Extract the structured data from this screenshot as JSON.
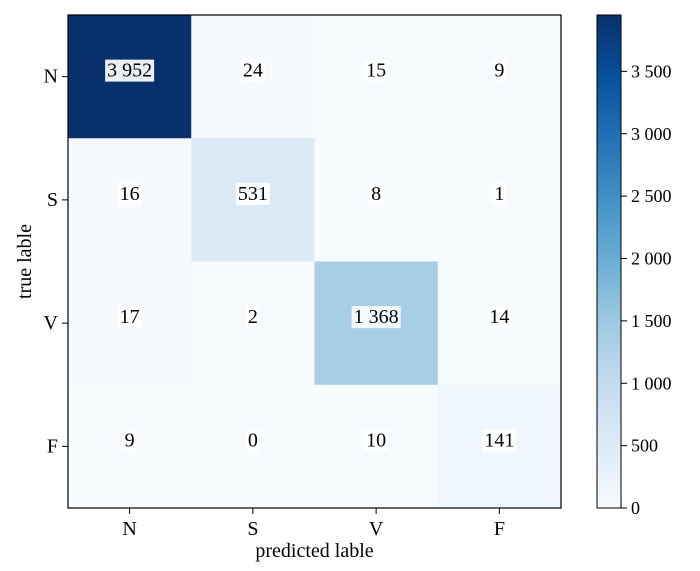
{
  "chart_data": {
    "type": "heatmap",
    "xlabel": "predicted lable",
    "ylabel": "true lable",
    "x_categories": [
      "N",
      "S",
      "V",
      "F"
    ],
    "y_categories": [
      "N",
      "S",
      "V",
      "F"
    ],
    "values": [
      [
        3952,
        24,
        15,
        9
      ],
      [
        16,
        531,
        8,
        1
      ],
      [
        17,
        2,
        1368,
        14
      ],
      [
        9,
        0,
        10,
        141
      ]
    ],
    "display_values": [
      [
        "3 952",
        "24",
        "15",
        "9"
      ],
      [
        "16",
        "531",
        "8",
        "1"
      ],
      [
        "17",
        "2",
        "1 368",
        "14"
      ],
      [
        "9",
        "0",
        "10",
        "141"
      ]
    ],
    "colormap": "Blues",
    "vmin": 0,
    "vmax": 3952,
    "colorbar_ticks": [
      0,
      500,
      1000,
      1500,
      2000,
      2500,
      3000,
      3500
    ],
    "colorbar_tick_labels": [
      "0",
      "500",
      "1 000",
      "1 500",
      "2 000",
      "2 500",
      "3 000",
      "3 500"
    ]
  }
}
